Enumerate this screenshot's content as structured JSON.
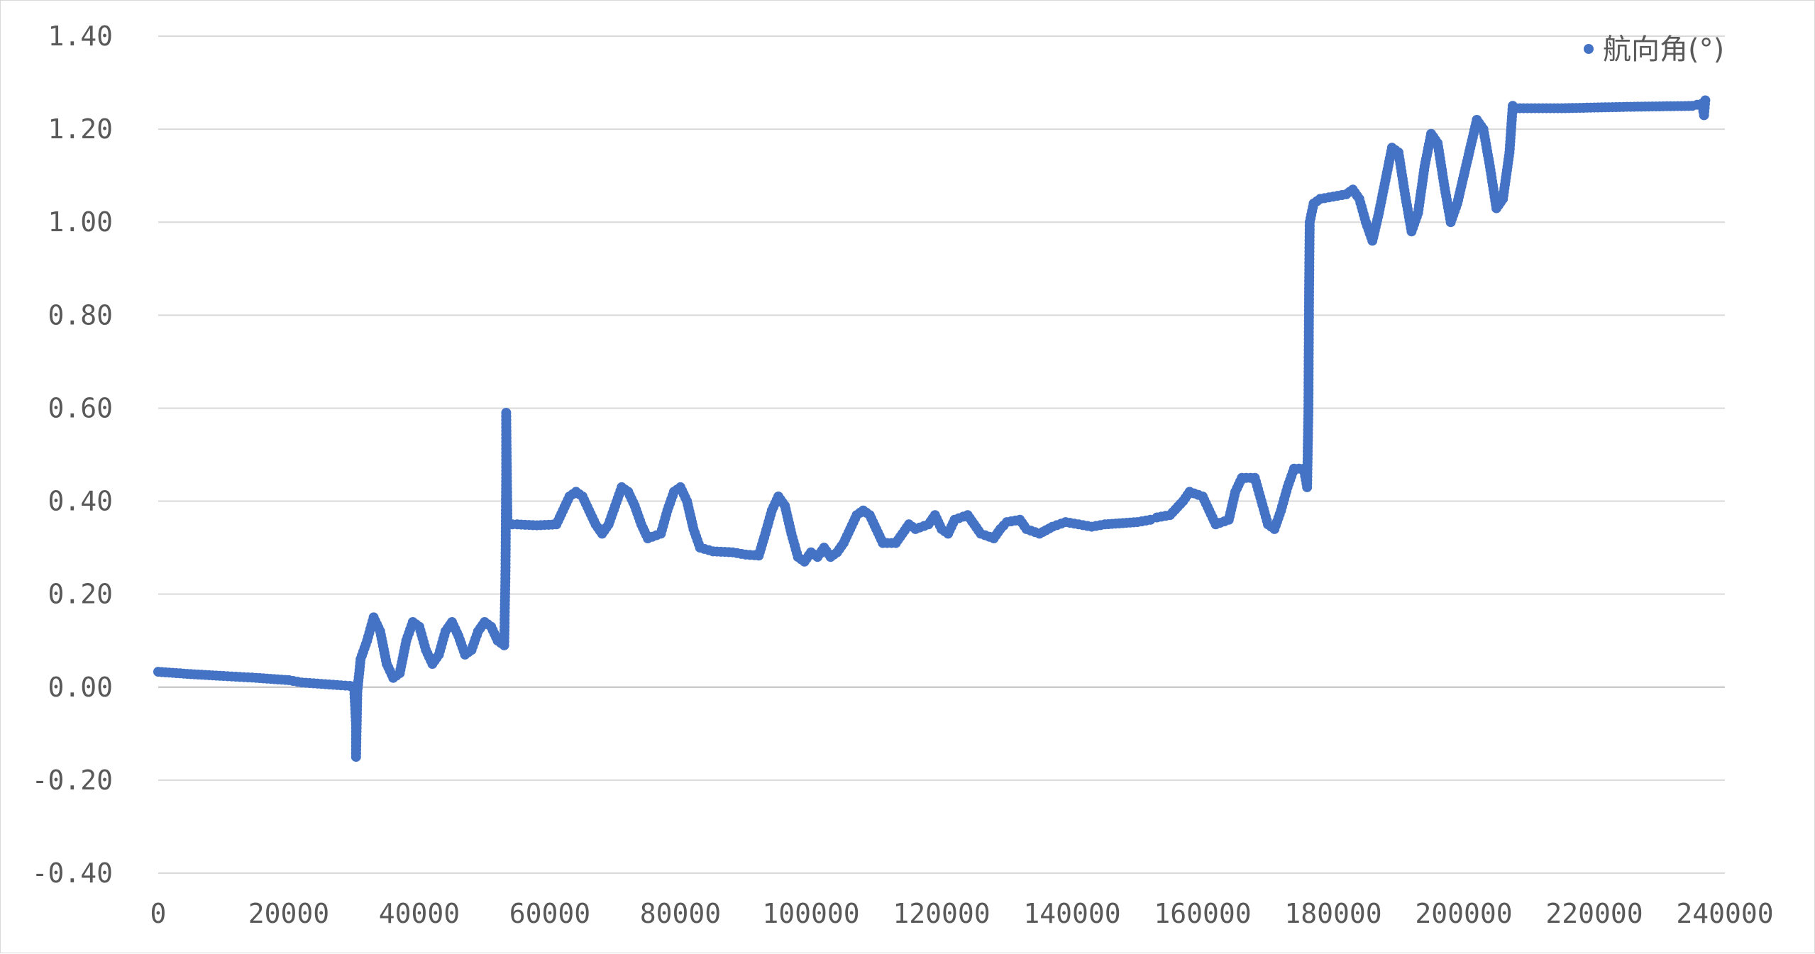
{
  "chart_data": {
    "type": "scatter",
    "xlim": [
      0,
      240000
    ],
    "ylim": [
      -0.4,
      1.4
    ],
    "x_ticks": [
      0,
      20000,
      40000,
      60000,
      80000,
      100000,
      120000,
      140000,
      160000,
      180000,
      200000,
      220000,
      240000
    ],
    "x_tick_labels": [
      "0",
      "20000",
      "40000",
      "60000",
      "80000",
      "100000",
      "120000",
      "140000",
      "160000",
      "180000",
      "200000",
      "220000",
      "240000"
    ],
    "y_ticks": [
      1.4,
      1.2,
      1.0,
      0.8,
      0.6,
      0.4,
      0.2,
      0.0,
      -0.2,
      -0.4
    ],
    "y_tick_labels": [
      "1.40",
      "1.20",
      "1.00",
      "0.80",
      "0.60",
      "0.40",
      "0.20",
      "0.00",
      "-0.20",
      "-0.40"
    ],
    "grid": "horizontal",
    "legend_position": "top-right",
    "color": "#4472C4",
    "series": [
      {
        "name": "航向角(°)",
        "points": [
          [
            0,
            0.033
          ],
          [
            5000,
            0.028
          ],
          [
            10000,
            0.024
          ],
          [
            12500,
            0.022
          ],
          [
            15000,
            0.02
          ],
          [
            20000,
            0.015
          ],
          [
            22000,
            0.01
          ],
          [
            25000,
            0.007
          ],
          [
            28000,
            0.004
          ],
          [
            30000,
            0.002
          ],
          [
            30300,
            -0.08
          ],
          [
            30300,
            -0.15
          ],
          [
            30500,
            -0.01
          ],
          [
            31000,
            0.06
          ],
          [
            32000,
            0.1
          ],
          [
            33000,
            0.15
          ],
          [
            34000,
            0.12
          ],
          [
            35000,
            0.05
          ],
          [
            36000,
            0.02
          ],
          [
            37000,
            0.03
          ],
          [
            38000,
            0.1
          ],
          [
            39000,
            0.14
          ],
          [
            40000,
            0.13
          ],
          [
            41000,
            0.08
          ],
          [
            42000,
            0.05
          ],
          [
            43000,
            0.07
          ],
          [
            44000,
            0.12
          ],
          [
            45000,
            0.14
          ],
          [
            46000,
            0.11
          ],
          [
            47000,
            0.07
          ],
          [
            48000,
            0.08
          ],
          [
            49000,
            0.12
          ],
          [
            50000,
            0.14
          ],
          [
            51000,
            0.13
          ],
          [
            52000,
            0.1
          ],
          [
            53000,
            0.09
          ],
          [
            53200,
            0.25
          ],
          [
            53300,
            0.45
          ],
          [
            53300,
            0.59
          ],
          [
            53500,
            0.35
          ],
          [
            55000,
            0.35
          ],
          [
            58000,
            0.348
          ],
          [
            61000,
            0.35
          ],
          [
            62000,
            0.38
          ],
          [
            63000,
            0.41
          ],
          [
            64000,
            0.42
          ],
          [
            65000,
            0.41
          ],
          [
            66000,
            0.38
          ],
          [
            67000,
            0.35
          ],
          [
            68000,
            0.33
          ],
          [
            69000,
            0.35
          ],
          [
            70000,
            0.39
          ],
          [
            71000,
            0.43
          ],
          [
            72000,
            0.42
          ],
          [
            73000,
            0.39
          ],
          [
            74000,
            0.35
          ],
          [
            75000,
            0.32
          ],
          [
            77000,
            0.33
          ],
          [
            78000,
            0.38
          ],
          [
            79000,
            0.42
          ],
          [
            80000,
            0.43
          ],
          [
            81000,
            0.4
          ],
          [
            82000,
            0.34
          ],
          [
            83000,
            0.3
          ],
          [
            85000,
            0.292
          ],
          [
            88000,
            0.29
          ],
          [
            90000,
            0.285
          ],
          [
            92000,
            0.283
          ],
          [
            93000,
            0.33
          ],
          [
            94000,
            0.38
          ],
          [
            95000,
            0.41
          ],
          [
            96000,
            0.39
          ],
          [
            97000,
            0.33
          ],
          [
            98000,
            0.28
          ],
          [
            99000,
            0.27
          ],
          [
            100000,
            0.29
          ],
          [
            101000,
            0.28
          ],
          [
            102000,
            0.3
          ],
          [
            103000,
            0.28
          ],
          [
            104000,
            0.29
          ],
          [
            105000,
            0.31
          ],
          [
            106000,
            0.34
          ],
          [
            107000,
            0.37
          ],
          [
            108000,
            0.38
          ],
          [
            109000,
            0.37
          ],
          [
            110000,
            0.34
          ],
          [
            111000,
            0.31
          ],
          [
            113000,
            0.31
          ],
          [
            114000,
            0.33
          ],
          [
            115000,
            0.35
          ],
          [
            116000,
            0.34
          ],
          [
            118000,
            0.35
          ],
          [
            119000,
            0.37
          ],
          [
            120000,
            0.34
          ],
          [
            121000,
            0.33
          ],
          [
            122000,
            0.36
          ],
          [
            124000,
            0.37
          ],
          [
            125000,
            0.35
          ],
          [
            126000,
            0.33
          ],
          [
            128000,
            0.32
          ],
          [
            129000,
            0.34
          ],
          [
            130000,
            0.355
          ],
          [
            132000,
            0.36
          ],
          [
            133000,
            0.34
          ],
          [
            135000,
            0.33
          ],
          [
            137000,
            0.345
          ],
          [
            139000,
            0.355
          ],
          [
            141000,
            0.35
          ],
          [
            143000,
            0.345
          ],
          [
            145000,
            0.35
          ],
          [
            150000,
            0.355
          ],
          [
            152000,
            0.36
          ],
          [
            153000,
            0.365
          ],
          [
            155000,
            0.37
          ],
          [
            157000,
            0.4
          ],
          [
            158000,
            0.42
          ],
          [
            160000,
            0.41
          ],
          [
            161000,
            0.38
          ],
          [
            162000,
            0.35
          ],
          [
            164000,
            0.36
          ],
          [
            165000,
            0.42
          ],
          [
            166000,
            0.45
          ],
          [
            168000,
            0.45
          ],
          [
            169000,
            0.4
          ],
          [
            170000,
            0.35
          ],
          [
            171000,
            0.34
          ],
          [
            172000,
            0.38
          ],
          [
            173000,
            0.43
          ],
          [
            174000,
            0.47
          ],
          [
            175500,
            0.47
          ],
          [
            176000,
            0.43
          ],
          [
            176200,
            0.6
          ],
          [
            176300,
            0.85
          ],
          [
            176400,
            1.0
          ],
          [
            177000,
            1.04
          ],
          [
            178000,
            1.05
          ],
          [
            180000,
            1.055
          ],
          [
            182000,
            1.06
          ],
          [
            183000,
            1.07
          ],
          [
            184000,
            1.05
          ],
          [
            185000,
            1.0
          ],
          [
            186000,
            0.96
          ],
          [
            187000,
            1.02
          ],
          [
            188000,
            1.09
          ],
          [
            189000,
            1.16
          ],
          [
            190000,
            1.15
          ],
          [
            191000,
            1.06
          ],
          [
            192000,
            0.98
          ],
          [
            193000,
            1.02
          ],
          [
            194000,
            1.12
          ],
          [
            195000,
            1.19
          ],
          [
            196000,
            1.17
          ],
          [
            197000,
            1.08
          ],
          [
            198000,
            1.0
          ],
          [
            199000,
            1.04
          ],
          [
            200000,
            1.1
          ],
          [
            201000,
            1.16
          ],
          [
            202000,
            1.22
          ],
          [
            203000,
            1.2
          ],
          [
            204000,
            1.12
          ],
          [
            205000,
            1.03
          ],
          [
            206000,
            1.05
          ],
          [
            207000,
            1.15
          ],
          [
            207500,
            1.25
          ],
          [
            208000,
            1.245
          ],
          [
            215000,
            1.245
          ],
          [
            225000,
            1.248
          ],
          [
            235000,
            1.25
          ],
          [
            236500,
            1.255
          ],
          [
            236800,
            1.23
          ],
          [
            237000,
            1.262
          ]
        ]
      }
    ]
  }
}
